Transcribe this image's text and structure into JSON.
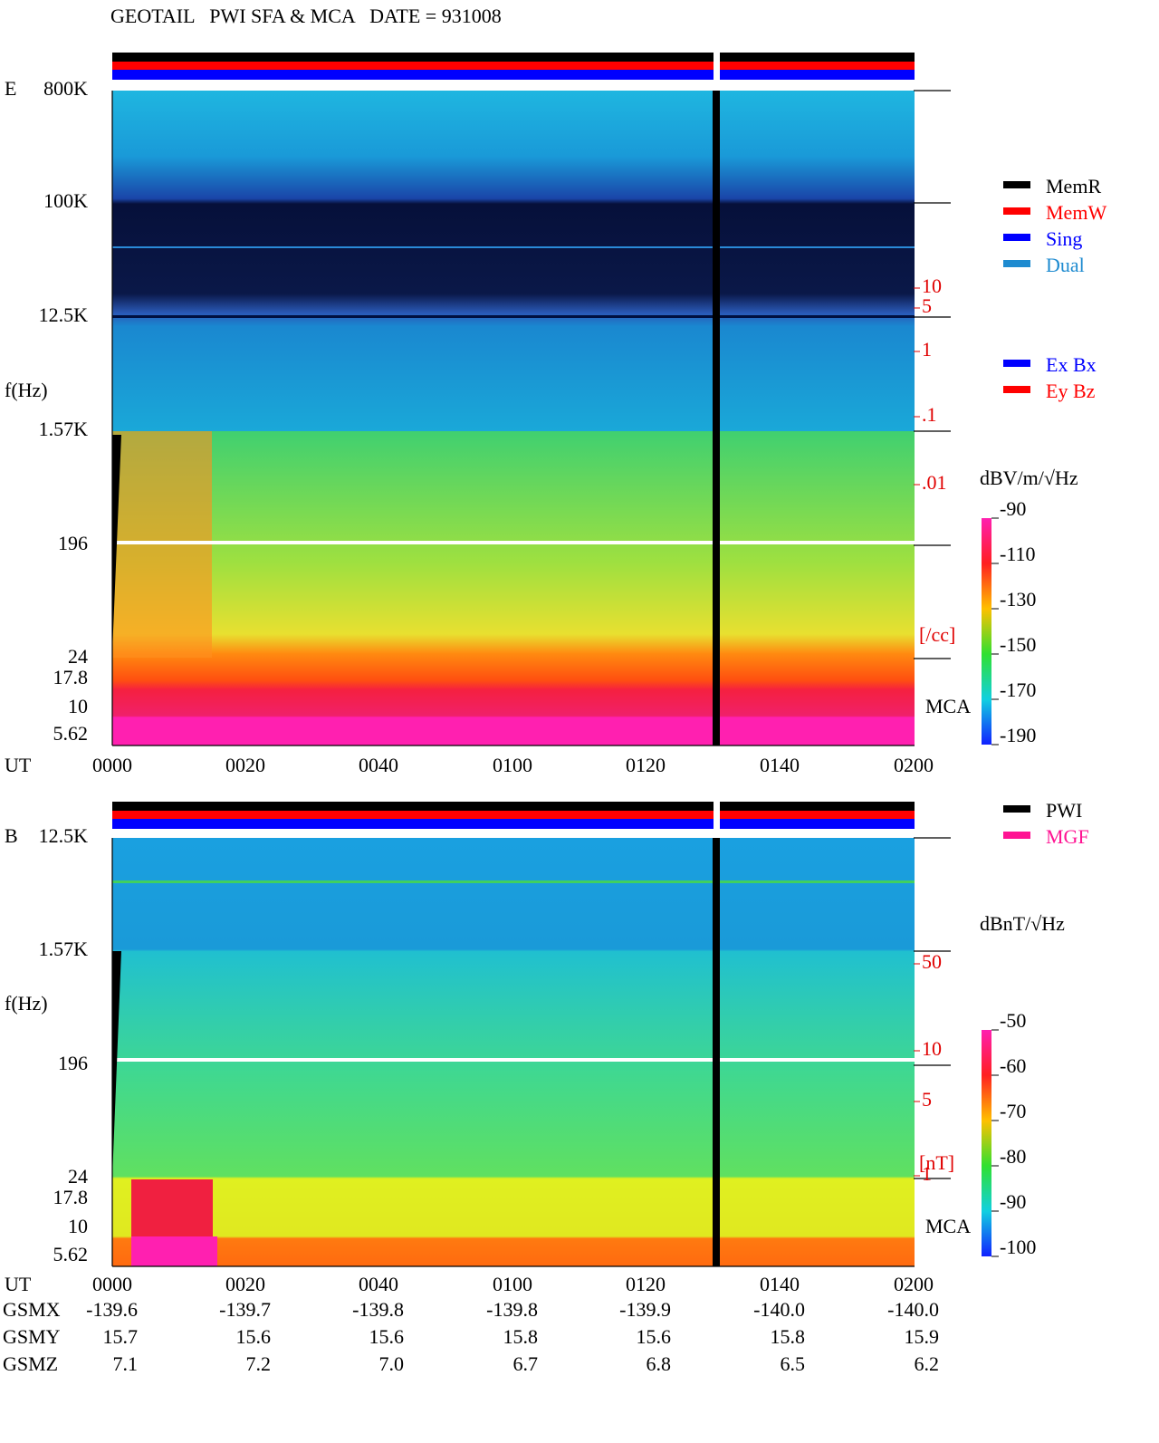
{
  "title": "GEOTAIL   PWI SFA & MCA   DATE = 931008",
  "panels": [
    {
      "label": "E",
      "y_labels": [
        "800K",
        "100K",
        "12.5K",
        "f(Hz)",
        "1.57K",
        "196",
        "24",
        "17.8",
        "10",
        "5.62"
      ],
      "right_labels": [
        "10",
        "5",
        "1",
        ".1",
        ".01",
        "[/cc]"
      ],
      "mca": "MCA",
      "x_title": "UT",
      "x_labels": [
        "0000",
        "0020",
        "0040",
        "0100",
        "0120",
        "0140",
        "0200"
      ],
      "legend": [
        {
          "name": "MemR",
          "color": "#000000"
        },
        {
          "name": "MemW",
          "color": "#ff0000"
        },
        {
          "name": "Sing",
          "color": "#0000ff"
        },
        {
          "name": "Dual",
          "color": "#1e8bd0"
        }
      ],
      "legend2": [
        {
          "name": "Ex Bx",
          "color": "#0000ff"
        },
        {
          "name": "Ey Bz",
          "color": "#ff0000"
        }
      ],
      "colorbar_unit": "dBV/m/√Hz",
      "colorbar_ticks": [
        -90,
        -110,
        -130,
        -150,
        -170,
        -190
      ]
    },
    {
      "label": "B",
      "y_labels": [
        "12.5K",
        "f(Hz)",
        "1.57K",
        "196",
        "24",
        "17.8",
        "10",
        "5.62"
      ],
      "right_labels": [
        "50",
        "10",
        "5",
        "1",
        "[nT]"
      ],
      "mca": "MCA",
      "x_title": "UT",
      "x_labels": [
        "0000",
        "0020",
        "0040",
        "0100",
        "0120",
        "0140",
        "0200"
      ],
      "legend": [
        {
          "name": "PWI",
          "color": "#000000"
        },
        {
          "name": "MGF",
          "color": "#ff1493"
        }
      ],
      "colorbar_unit": "dBnT/√Hz",
      "colorbar_ticks": [
        -50,
        -60,
        -70,
        -80,
        -90,
        -100
      ]
    }
  ],
  "orbit": [
    {
      "name": "GSMX",
      "values": [
        "-139.6",
        "-139.7",
        "-139.8",
        "-139.8",
        "-139.9",
        "-140.0",
        "-140.0"
      ]
    },
    {
      "name": "GSMY",
      "values": [
        "15.7",
        "15.6",
        "15.6",
        "15.8",
        "15.6",
        "15.8",
        "15.9"
      ]
    },
    {
      "name": "GSMZ",
      "values": [
        "7.1",
        "7.2",
        "7.0",
        "6.7",
        "6.8",
        "6.5",
        "6.2"
      ]
    }
  ]
}
